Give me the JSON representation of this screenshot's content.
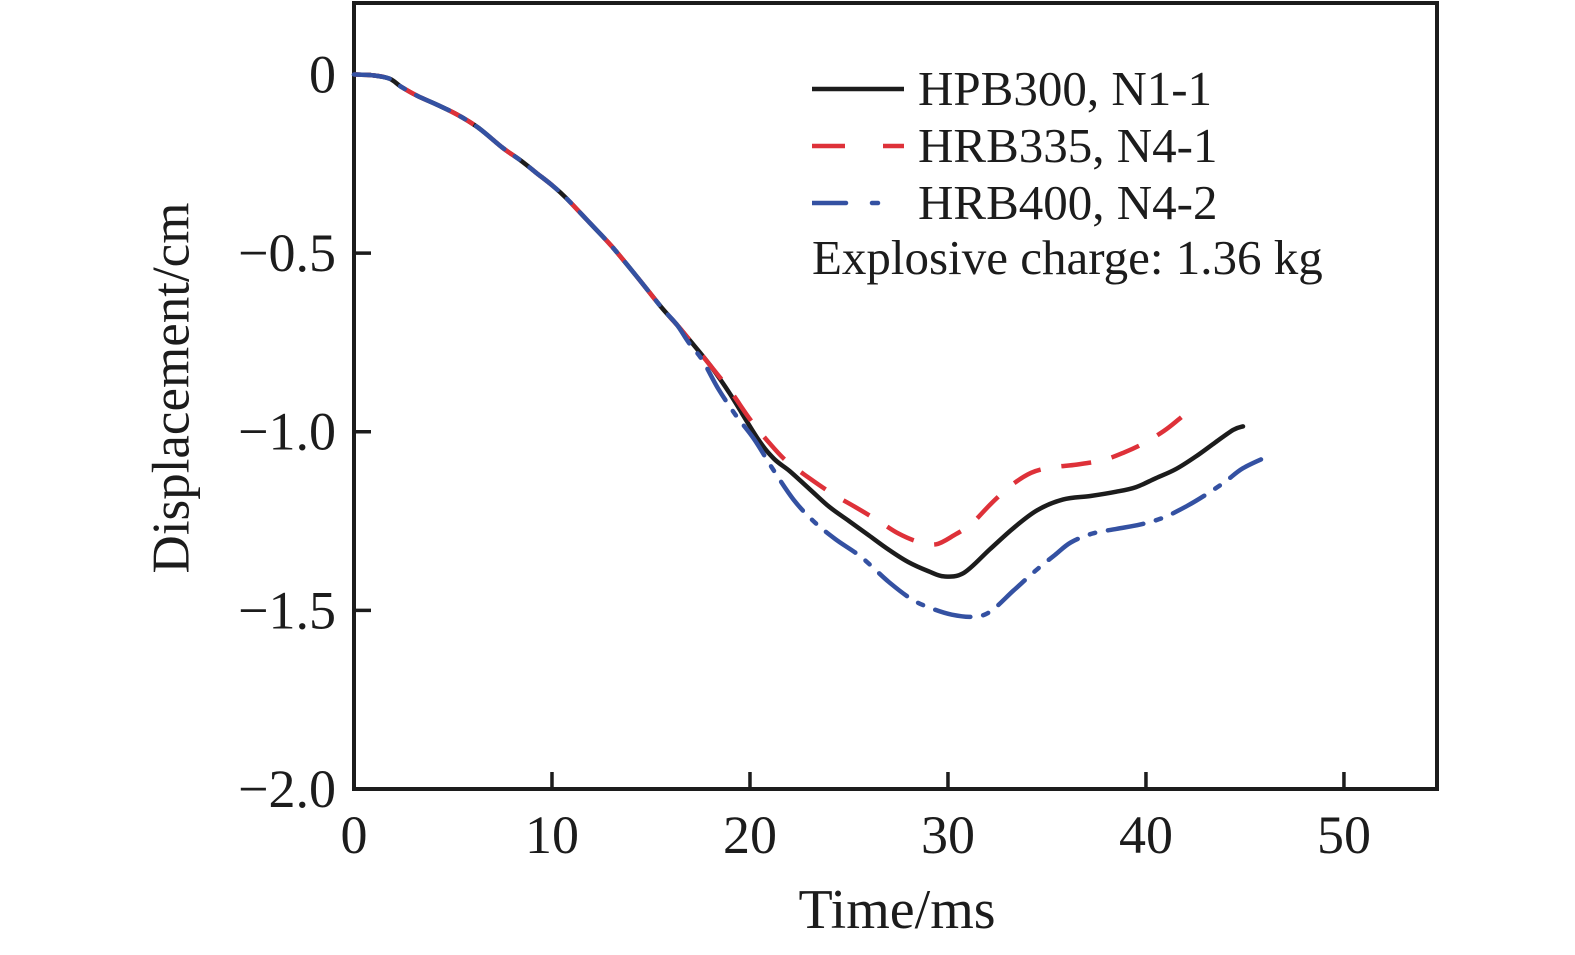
{
  "chart_data": {
    "type": "line",
    "title": "",
    "xlabel": "Time/ms",
    "ylabel": "Displacement/cm",
    "xlim": [
      0,
      54.7
    ],
    "ylim": [
      -2.0,
      0.2
    ],
    "grid": false,
    "legend_position": "top-right-inside",
    "annotation": "Explosive charge: 1.36 kg",
    "x_ticks": [
      0,
      10,
      20,
      30,
      40,
      50
    ],
    "x_tick_labels": [
      "0",
      "10",
      "20",
      "30",
      "40",
      "50"
    ],
    "y_ticks": [
      0,
      -0.5,
      -1.0,
      -1.5,
      -2.0
    ],
    "y_tick_labels": [
      "0",
      "−0.5",
      "−1.0",
      "−1.5",
      "−2.0"
    ],
    "axis_color": "#1c1c1c",
    "series": [
      {
        "name": "HPB300, N1-1",
        "color": "#1c1c1c",
        "style": "solid",
        "points": [
          [
            0,
            0
          ],
          [
            1.0,
            -0.003
          ],
          [
            1.8,
            -0.012
          ],
          [
            2.4,
            -0.035
          ],
          [
            3.2,
            -0.06
          ],
          [
            4.2,
            -0.085
          ],
          [
            5.2,
            -0.112
          ],
          [
            6.3,
            -0.15
          ],
          [
            7.5,
            -0.205
          ],
          [
            8.4,
            -0.24
          ],
          [
            9.2,
            -0.275
          ],
          [
            10.0,
            -0.31
          ],
          [
            10.7,
            -0.345
          ],
          [
            11.9,
            -0.415
          ],
          [
            13.0,
            -0.48
          ],
          [
            14.2,
            -0.56
          ],
          [
            15.5,
            -0.65
          ],
          [
            16.3,
            -0.7
          ],
          [
            16.9,
            -0.74
          ],
          [
            18.0,
            -0.815
          ],
          [
            19.0,
            -0.895
          ],
          [
            20.4,
            -1.02
          ],
          [
            21.2,
            -1.075
          ],
          [
            22.0,
            -1.11
          ],
          [
            23.0,
            -1.16
          ],
          [
            24.0,
            -1.21
          ],
          [
            25.0,
            -1.25
          ],
          [
            26.0,
            -1.29
          ],
          [
            27.0,
            -1.33
          ],
          [
            28.0,
            -1.365
          ],
          [
            29.0,
            -1.39
          ],
          [
            29.8,
            -1.405
          ],
          [
            30.8,
            -1.395
          ],
          [
            32.1,
            -1.33
          ],
          [
            33.3,
            -1.27
          ],
          [
            34.5,
            -1.22
          ],
          [
            35.8,
            -1.19
          ],
          [
            37.2,
            -1.18
          ],
          [
            38.5,
            -1.168
          ],
          [
            39.5,
            -1.155
          ],
          [
            40.5,
            -1.13
          ],
          [
            41.5,
            -1.105
          ],
          [
            42.5,
            -1.07
          ],
          [
            43.5,
            -1.03
          ],
          [
            44.4,
            -0.995
          ],
          [
            44.9,
            -0.985
          ]
        ]
      },
      {
        "name": "HRB335, N4-1",
        "color": "#de3139",
        "style": "dashed",
        "points": [
          [
            0,
            0
          ],
          [
            1.0,
            -0.003
          ],
          [
            1.8,
            -0.012
          ],
          [
            2.4,
            -0.035
          ],
          [
            3.2,
            -0.06
          ],
          [
            4.2,
            -0.085
          ],
          [
            5.2,
            -0.112
          ],
          [
            6.3,
            -0.15
          ],
          [
            7.5,
            -0.205
          ],
          [
            8.4,
            -0.24
          ],
          [
            9.2,
            -0.275
          ],
          [
            10.0,
            -0.31
          ],
          [
            10.7,
            -0.345
          ],
          [
            11.9,
            -0.415
          ],
          [
            13.0,
            -0.48
          ],
          [
            14.2,
            -0.56
          ],
          [
            15.5,
            -0.65
          ],
          [
            16.3,
            -0.7
          ],
          [
            16.9,
            -0.74
          ],
          [
            18.0,
            -0.815
          ],
          [
            19.0,
            -0.885
          ],
          [
            20.0,
            -0.965
          ],
          [
            20.8,
            -1.02
          ],
          [
            21.8,
            -1.08
          ],
          [
            23.0,
            -1.13
          ],
          [
            24.2,
            -1.175
          ],
          [
            25.3,
            -1.21
          ],
          [
            26.5,
            -1.25
          ],
          [
            27.5,
            -1.285
          ],
          [
            28.5,
            -1.308
          ],
          [
            29.4,
            -1.315
          ],
          [
            30.3,
            -1.29
          ],
          [
            31.2,
            -1.257
          ],
          [
            32.2,
            -1.2
          ],
          [
            33.2,
            -1.15
          ],
          [
            34.2,
            -1.115
          ],
          [
            35.2,
            -1.1
          ],
          [
            36.5,
            -1.092
          ],
          [
            37.8,
            -1.08
          ],
          [
            38.9,
            -1.058
          ],
          [
            39.9,
            -1.032
          ],
          [
            40.9,
            -0.998
          ],
          [
            41.6,
            -0.968
          ],
          [
            42.1,
            -0.945
          ]
        ]
      },
      {
        "name": "HRB400, N4-2",
        "color": "#3451a2",
        "style": "dash-dot",
        "points": [
          [
            0,
            0
          ],
          [
            1.0,
            -0.003
          ],
          [
            1.8,
            -0.012
          ],
          [
            2.4,
            -0.035
          ],
          [
            3.2,
            -0.06
          ],
          [
            4.2,
            -0.085
          ],
          [
            5.2,
            -0.112
          ],
          [
            6.3,
            -0.15
          ],
          [
            7.5,
            -0.205
          ],
          [
            8.4,
            -0.24
          ],
          [
            9.2,
            -0.275
          ],
          [
            10.0,
            -0.31
          ],
          [
            10.7,
            -0.345
          ],
          [
            11.9,
            -0.415
          ],
          [
            13.0,
            -0.48
          ],
          [
            14.2,
            -0.56
          ],
          [
            15.5,
            -0.65
          ],
          [
            16.3,
            -0.7
          ],
          [
            16.9,
            -0.75
          ],
          [
            17.6,
            -0.8
          ],
          [
            18.4,
            -0.88
          ],
          [
            19.3,
            -0.955
          ],
          [
            20.2,
            -1.02
          ],
          [
            21.1,
            -1.1
          ],
          [
            22.2,
            -1.19
          ],
          [
            23.2,
            -1.25
          ],
          [
            24.3,
            -1.3
          ],
          [
            25.6,
            -1.35
          ],
          [
            27.0,
            -1.42
          ],
          [
            28.2,
            -1.47
          ],
          [
            29.2,
            -1.495
          ],
          [
            30.2,
            -1.512
          ],
          [
            31.2,
            -1.518
          ],
          [
            32.1,
            -1.505
          ],
          [
            33.3,
            -1.445
          ],
          [
            34.4,
            -1.39
          ],
          [
            35.4,
            -1.345
          ],
          [
            36.2,
            -1.31
          ],
          [
            37.3,
            -1.285
          ],
          [
            38.5,
            -1.272
          ],
          [
            39.7,
            -1.26
          ],
          [
            40.9,
            -1.24
          ],
          [
            42.1,
            -1.207
          ],
          [
            43.0,
            -1.177
          ],
          [
            44.0,
            -1.14
          ],
          [
            44.9,
            -1.102
          ],
          [
            46.2,
            -1.068
          ]
        ]
      }
    ]
  }
}
